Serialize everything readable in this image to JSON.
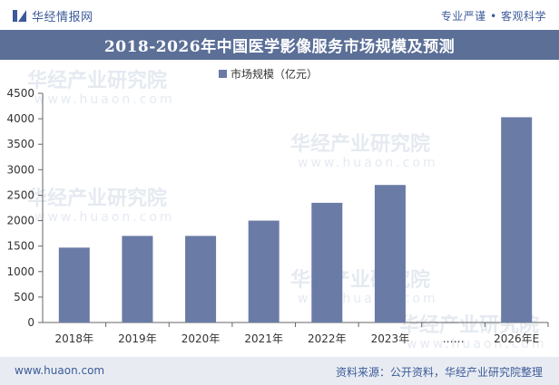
{
  "header": {
    "brand": "华经情报网",
    "tagline": "专业严谨 • 客观科学"
  },
  "footer": {
    "website": "www.huaon.com",
    "source": "资料来源：公开资料，华经产业研究院整理"
  },
  "watermark": {
    "cn": "华经产业研究院",
    "en": "www.huaon.com"
  },
  "colors": {
    "bar": "#6a7ba6",
    "title_bg": "#5b6f97",
    "footer_bg": "#e8ecf2",
    "brand": "#3c5a99"
  },
  "chart_data": {
    "type": "bar",
    "title": "2018-2026年中国医学影像服务市场规模及预测",
    "legend": "市场规模（亿元）",
    "legend_position": "top-center",
    "categories": [
      "2018年",
      "2019年",
      "2020年",
      "2021年",
      "2022年",
      "2023年",
      "……",
      "2026年E"
    ],
    "values": [
      1470,
      1700,
      1700,
      2000,
      2350,
      2700,
      null,
      4030
    ],
    "ylim": [
      0,
      4500
    ],
    "yticks": [
      "0",
      "500",
      "1000",
      "1500",
      "2000",
      "2500",
      "3000",
      "3500",
      "4000",
      "4500"
    ],
    "xlabel": "",
    "ylabel": "",
    "grid": false
  }
}
